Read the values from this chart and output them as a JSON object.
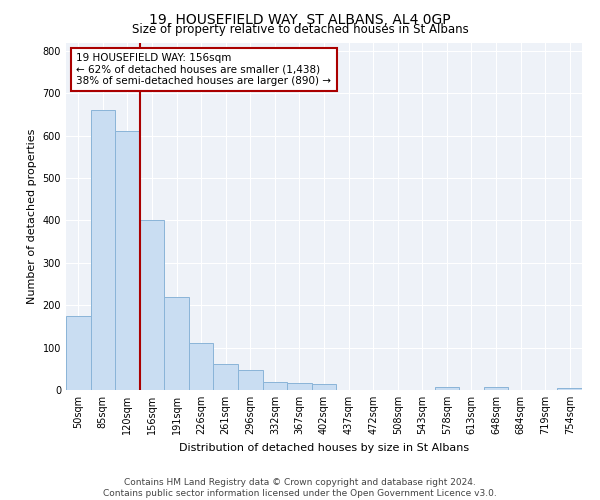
{
  "title": "19, HOUSEFIELD WAY, ST ALBANS, AL4 0GP",
  "subtitle": "Size of property relative to detached houses in St Albans",
  "xlabel": "Distribution of detached houses by size in St Albans",
  "ylabel": "Number of detached properties",
  "bar_labels": [
    "50sqm",
    "85sqm",
    "120sqm",
    "156sqm",
    "191sqm",
    "226sqm",
    "261sqm",
    "296sqm",
    "332sqm",
    "367sqm",
    "402sqm",
    "437sqm",
    "472sqm",
    "508sqm",
    "543sqm",
    "578sqm",
    "613sqm",
    "648sqm",
    "684sqm",
    "719sqm",
    "754sqm"
  ],
  "bar_values": [
    175,
    660,
    610,
    400,
    220,
    110,
    62,
    47,
    20,
    16,
    13,
    0,
    0,
    0,
    0,
    7,
    0,
    8,
    0,
    0,
    5
  ],
  "bar_color": "#c9ddf2",
  "bar_edge_color": "#8ab4d8",
  "vline_x_index": 3,
  "vline_color": "#aa0000",
  "annotation_line1": "19 HOUSEFIELD WAY: 156sqm",
  "annotation_line2": "← 62% of detached houses are smaller (1,438)",
  "annotation_line3": "38% of semi-detached houses are larger (890) →",
  "annotation_box_color": "#aa0000",
  "ylim": [
    0,
    820
  ],
  "yticks": [
    0,
    100,
    200,
    300,
    400,
    500,
    600,
    700,
    800
  ],
  "bg_color": "#eef2f8",
  "grid_color": "#ffffff",
  "footer": "Contains HM Land Registry data © Crown copyright and database right 2024.\nContains public sector information licensed under the Open Government Licence v3.0.",
  "title_fontsize": 10,
  "subtitle_fontsize": 8.5,
  "xlabel_fontsize": 8,
  "ylabel_fontsize": 8,
  "tick_fontsize": 7,
  "annotation_fontsize": 7.5,
  "footer_fontsize": 6.5
}
